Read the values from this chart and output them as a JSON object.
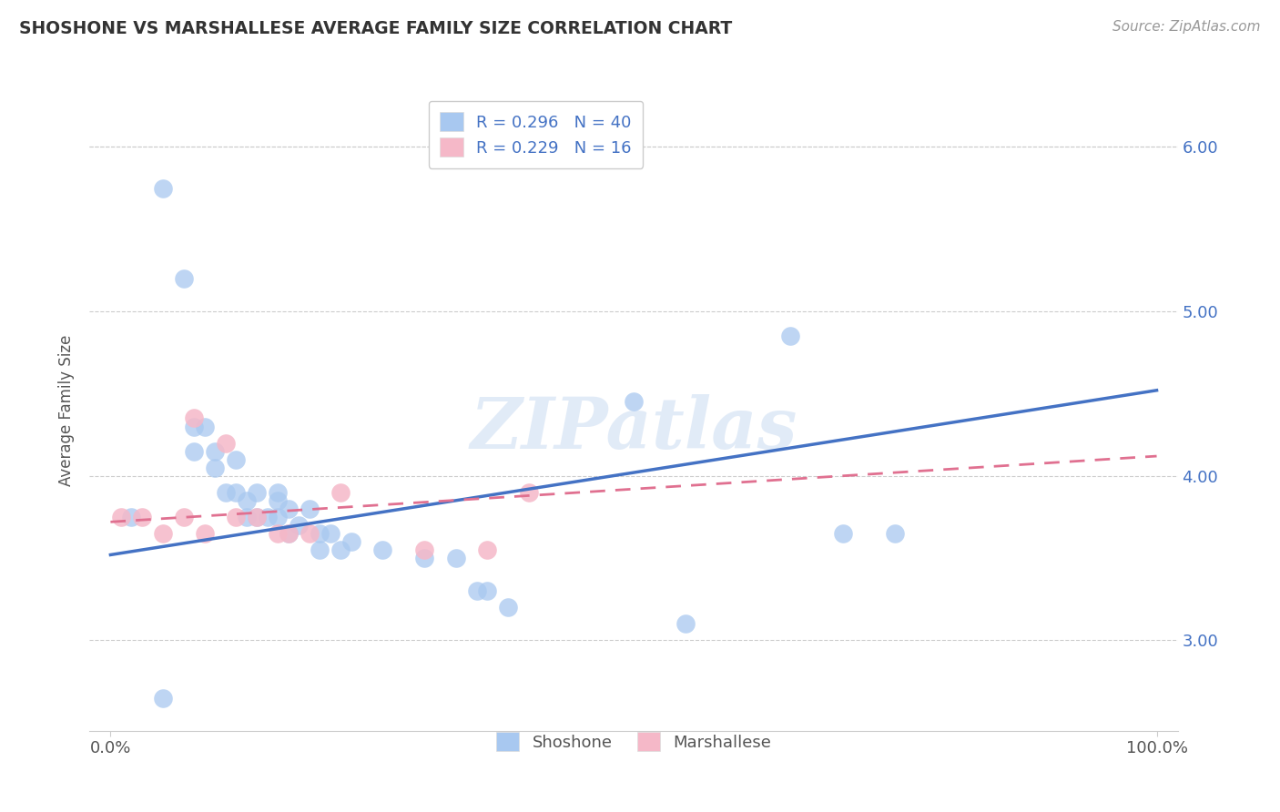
{
  "title": "SHOSHONE VS MARSHALLESE AVERAGE FAMILY SIZE CORRELATION CHART",
  "source": "Source: ZipAtlas.com",
  "ylabel": "Average Family Size",
  "xlim": [
    -2,
    102
  ],
  "ylim": [
    2.45,
    6.35
  ],
  "yticks": [
    3.0,
    4.0,
    5.0,
    6.0
  ],
  "xtick_labels": [
    "0.0%",
    "100.0%"
  ],
  "shoshone_color": "#a8c8f0",
  "marshallese_color": "#f5b8c8",
  "blue_line_color": "#4472C4",
  "pink_line_color": "#e07090",
  "right_axis_color": "#4472C4",
  "legend_r1": "R = 0.296   N = 40",
  "legend_r2": "R = 0.229   N = 16",
  "watermark": "ZIPatlas",
  "shoshone_x": [
    2,
    5,
    7,
    8,
    8,
    9,
    10,
    10,
    11,
    12,
    12,
    13,
    13,
    14,
    14,
    15,
    16,
    16,
    16,
    17,
    17,
    18,
    19,
    20,
    20,
    21,
    22,
    23,
    26,
    30,
    33,
    35,
    36,
    38,
    50,
    55,
    65,
    75,
    5,
    70
  ],
  "shoshone_y": [
    3.75,
    5.75,
    5.2,
    4.3,
    4.15,
    4.3,
    4.15,
    4.05,
    3.9,
    3.9,
    4.1,
    3.85,
    3.75,
    3.75,
    3.9,
    3.75,
    3.75,
    3.9,
    3.85,
    3.65,
    3.8,
    3.7,
    3.8,
    3.65,
    3.55,
    3.65,
    3.55,
    3.6,
    3.55,
    3.5,
    3.5,
    3.3,
    3.3,
    3.2,
    4.45,
    3.1,
    4.85,
    3.65,
    2.65,
    3.65
  ],
  "marshallese_x": [
    1,
    3,
    5,
    7,
    8,
    9,
    11,
    12,
    14,
    16,
    17,
    19,
    22,
    30,
    36,
    40
  ],
  "marshallese_y": [
    3.75,
    3.75,
    3.65,
    3.75,
    4.35,
    3.65,
    4.2,
    3.75,
    3.75,
    3.65,
    3.65,
    3.65,
    3.9,
    3.55,
    3.55,
    3.9
  ],
  "shoshone_intercept": 3.52,
  "shoshone_slope": 0.01,
  "marshallese_intercept": 3.72,
  "marshallese_slope": 0.004
}
